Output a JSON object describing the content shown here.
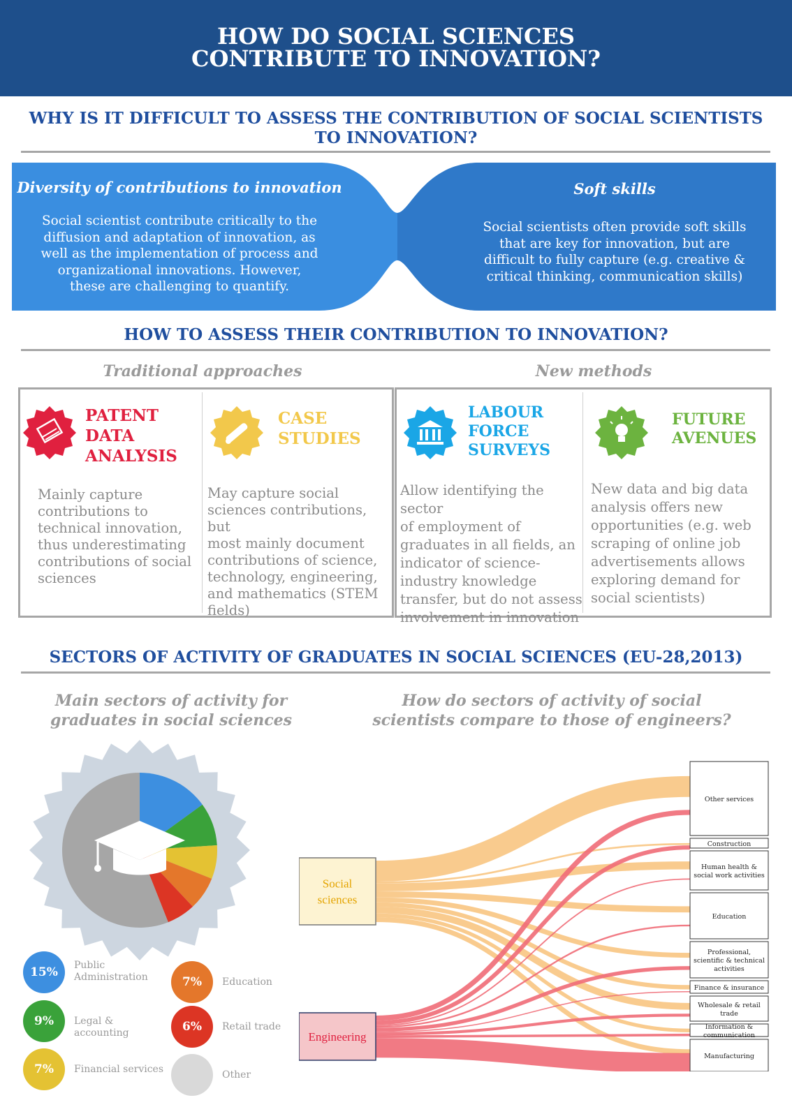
{
  "header": {
    "line1": "HOW DO SOCIAL SCIENCES",
    "line2": "CONTRIBUTE TO INNOVATION?"
  },
  "section1": {
    "title_line1": "WHY IS IT DIFFICULT TO ASSESS THE CONTRIBUTION OF SOCIAL SCIENTISTS",
    "title_line2": "TO INNOVATION?",
    "left": {
      "heading": "Diversity of contributions to innovation",
      "lines": [
        "Social scientist contribute critically to the",
        "diffusion and adaptation of innovation, as",
        "well as the implementation of process and",
        "organizational innovations. However,",
        "these are challenging to quantify."
      ]
    },
    "right": {
      "heading": "Soft skills",
      "lines": [
        "Social scientists often provide soft skills",
        "that are key for innovation, but are",
        "difficult to fully capture (e.g. creative &",
        "critical thinking, communication skills)"
      ]
    }
  },
  "section2": {
    "title": "HOW TO ASSESS THEIR CONTRIBUTION TO INNOVATION?",
    "traditional": "Traditional approaches",
    "new": "New methods",
    "methods": [
      {
        "title_lines": [
          "PATENT",
          "DATA",
          "ANALYSIS"
        ],
        "color": "#e0203f",
        "icon": "patent-scroll-icon",
        "lines": [
          "Mainly capture",
          "contributions to",
          "technical innovation,",
          "thus underestimating",
          "contributions of social",
          "sciences"
        ]
      },
      {
        "title_lines": [
          "CASE",
          "STUDIES"
        ],
        "color": "#f2c84b",
        "icon": "diploma-icon",
        "lines": [
          "May capture social",
          "sciences contributions, but",
          "most mainly document",
          "contributions of science,",
          "technology, engineering,",
          "and mathematics (STEM",
          "fields)"
        ]
      },
      {
        "title_lines": [
          "LABOUR",
          "FORCE",
          "SURVEYS"
        ],
        "color": "#1aa6e6",
        "icon": "institution-icon",
        "lines": [
          "Allow identifying the sector",
          "of employment of",
          "graduates in all fields, an",
          "indicator of science-",
          "industry knowledge",
          "transfer, but do not assess",
          "involvement in innovation"
        ]
      },
      {
        "title_lines": [
          "FUTURE",
          "AVENUES"
        ],
        "color": "#6cb33f",
        "icon": "lightbulb-icon",
        "lines": [
          "New data and big data",
          "analysis offers new",
          "opportunities (e.g. web",
          "scraping of online job",
          "advertisements allows",
          "exploring demand for",
          "social scientists)"
        ]
      }
    ]
  },
  "section3": {
    "title": "SECTORS OF ACTIVITY OF GRADUATES IN SOCIAL SCIENCES (EU-28,2013)",
    "left_sub_line1": "Main sectors of activity for",
    "left_sub_line2": "graduates in social sciences",
    "right_sub_line1": "How do sectors of activity of social",
    "right_sub_line2": "scientists compare to those of engineers?"
  },
  "colors": {
    "header": "#1e4f8b",
    "section_title": "#1f4e9e",
    "blue_band": "#3a87d6",
    "social": "#f8c27a",
    "engineering": "#ef6b77"
  },
  "chart_data": [
    {
      "type": "pie",
      "series": [
        {
          "label": "Public Administration",
          "value": 15,
          "display": "15%",
          "color": "#3d8fe0"
        },
        {
          "label": "Legal & accounting",
          "value": 9,
          "display": "9%",
          "color": "#3aa23a"
        },
        {
          "label": "Financial services",
          "value": 7,
          "display": "7%",
          "color": "#e4c233"
        },
        {
          "label": "Education",
          "value": 7,
          "display": "7%",
          "color": "#e4772b"
        },
        {
          "label": "Retail trade",
          "value": 6,
          "display": "6%",
          "color": "#dc3524"
        },
        {
          "label": "Other",
          "value": 56,
          "display": "",
          "color": "#a6a6a6"
        }
      ]
    },
    {
      "type": "sankey",
      "sources": [
        {
          "label": "Social sciences",
          "color": "#f8c27a"
        },
        {
          "label": "Engineering",
          "color": "#ef6b77"
        }
      ],
      "targets": [
        "Other services",
        "Construction",
        "Human health & social work activities",
        "Education",
        "Professional, scientific & technical activities",
        "Finance & insurance",
        "Wholesale & retail trade",
        "Information & communication",
        "Manufacturing"
      ],
      "flows": {
        "Social sciences": [
          34,
          3,
          13,
          10,
          8,
          7,
          11,
          6,
          8
        ],
        "Engineering": [
          12,
          10,
          3,
          4,
          9,
          2,
          7,
          6,
          47
        ]
      }
    }
  ]
}
